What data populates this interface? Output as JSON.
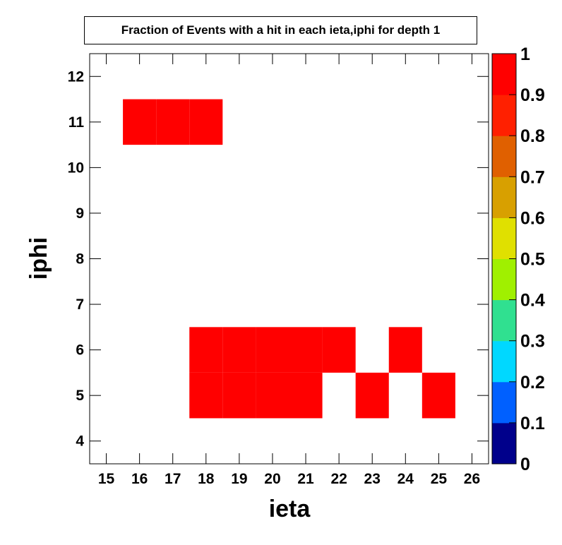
{
  "chart_data": {
    "type": "heatmap",
    "title": "Fraction of Events with a hit in each ieta,iphi for depth 1",
    "xlabel": "ieta",
    "ylabel": "iphi",
    "xlim": [
      14.5,
      26.5
    ],
    "ylim": [
      3.5,
      12.5
    ],
    "x_ticks": [
      15,
      16,
      17,
      18,
      19,
      20,
      21,
      22,
      23,
      24,
      25,
      26
    ],
    "y_ticks": [
      4,
      5,
      6,
      7,
      8,
      9,
      10,
      11,
      12
    ],
    "zlim": [
      0,
      1
    ],
    "z_ticks": [
      "0",
      "0.1",
      "0.2",
      "0.3",
      "0.4",
      "0.5",
      "0.6",
      "0.7",
      "0.8",
      "0.9",
      "1"
    ],
    "colorscale": [
      "#00008b",
      "#0060ff",
      "#00d8ff",
      "#30e090",
      "#a0f000",
      "#e0e000",
      "#d8a000",
      "#e06000",
      "#ff2000",
      "#ff0000"
    ],
    "cells": [
      {
        "x": 16,
        "y": 11,
        "z": 1
      },
      {
        "x": 17,
        "y": 11,
        "z": 1
      },
      {
        "x": 18,
        "y": 11,
        "z": 1
      },
      {
        "x": 18,
        "y": 6,
        "z": 1
      },
      {
        "x": 19,
        "y": 6,
        "z": 1
      },
      {
        "x": 20,
        "y": 6,
        "z": 1
      },
      {
        "x": 21,
        "y": 6,
        "z": 1
      },
      {
        "x": 22,
        "y": 6,
        "z": 1
      },
      {
        "x": 24,
        "y": 6,
        "z": 1
      },
      {
        "x": 18,
        "y": 5,
        "z": 1
      },
      {
        "x": 19,
        "y": 5,
        "z": 1
      },
      {
        "x": 20,
        "y": 5,
        "z": 1
      },
      {
        "x": 21,
        "y": 5,
        "z": 1
      },
      {
        "x": 23,
        "y": 5,
        "z": 1
      },
      {
        "x": 25,
        "y": 5,
        "z": 1
      }
    ]
  }
}
